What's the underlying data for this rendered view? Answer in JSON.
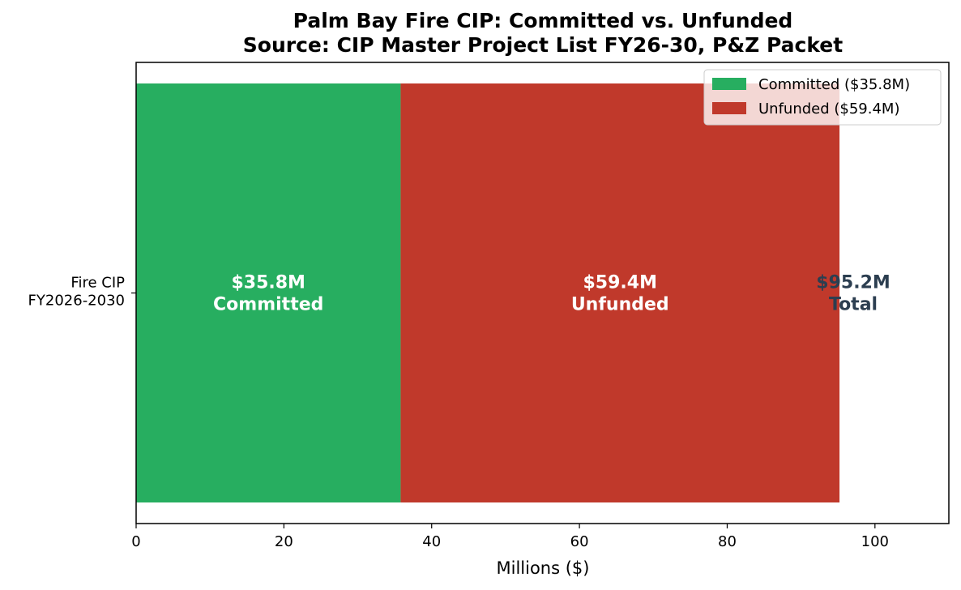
{
  "chart_data": {
    "type": "bar",
    "orientation": "horizontal",
    "stacked": true,
    "title": "Palm Bay Fire CIP: Committed vs. Unfunded",
    "subtitle": "Source: CIP Master Project List FY26-30, P&Z Packet",
    "xlabel": "Millions ($)",
    "ylabel": "",
    "xlim": [
      0,
      110
    ],
    "xticks": [
      0,
      20,
      40,
      60,
      80,
      100
    ],
    "categories": [
      "Fire CIP\nFY2026-2030"
    ],
    "series": [
      {
        "name": "Committed ($35.8M)",
        "values": [
          35.8
        ],
        "color": "#27ae60",
        "label_line1": "$35.8M",
        "label_line2": "Committed"
      },
      {
        "name": "Unfunded ($59.4M)",
        "values": [
          59.4
        ],
        "color": "#c0392b",
        "label_line1": "$59.4M",
        "label_line2": "Unfunded"
      }
    ],
    "total": {
      "value": 95.2,
      "label_line1": "$95.2M",
      "label_line2": "Total",
      "color": "#2c3e50"
    },
    "legend_position": "top-right",
    "grid": false
  }
}
